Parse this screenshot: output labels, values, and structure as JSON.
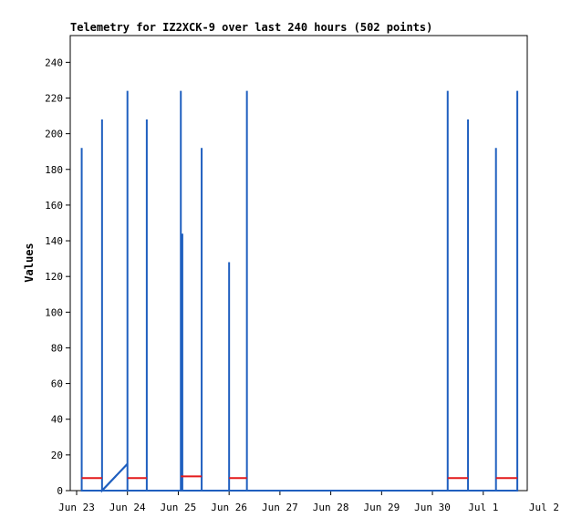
{
  "chart_data": {
    "type": "line",
    "title": "Telemetry for IZ2XCK-9 over last 240 hours (502 points)",
    "xlabel": "",
    "ylabel": "Values",
    "ylim": [
      0,
      255
    ],
    "yticks": [
      0,
      20,
      40,
      60,
      80,
      100,
      120,
      140,
      160,
      180,
      200,
      220,
      240
    ],
    "xlim": [
      0,
      9
    ],
    "xticks": [
      {
        "label": "Jun 23",
        "x": 0
      },
      {
        "label": "Jun 24",
        "x": 1
      },
      {
        "label": "Jun 25",
        "x": 2
      },
      {
        "label": "Jun 26",
        "x": 3
      },
      {
        "label": "Jun 27",
        "x": 4
      },
      {
        "label": "Jun 28",
        "x": 5
      },
      {
        "label": "Jun 29",
        "x": 6
      },
      {
        "label": "Jun 30",
        "x": 7
      },
      {
        "label": "Jul 1",
        "x": 8
      },
      {
        "label": "Jul 2",
        "x": 9
      }
    ],
    "grid": false,
    "colors": {
      "series1": "#1f5fbf",
      "series2": "#e41a1c",
      "frame": "#000000"
    },
    "series": [
      {
        "color": "#1f5fbf",
        "points": [
          [
            0.1,
            0
          ],
          [
            0.1,
            192
          ],
          [
            0.1,
            0
          ],
          [
            0.5,
            0
          ],
          [
            0.5,
            208
          ],
          [
            0.5,
            0
          ],
          [
            1.0,
            15
          ],
          [
            1.0,
            224
          ],
          [
            1.0,
            0
          ],
          [
            1.38,
            0
          ],
          [
            1.38,
            208
          ],
          [
            1.38,
            0
          ],
          [
            2.05,
            0
          ],
          [
            2.05,
            224
          ],
          [
            2.05,
            0
          ],
          [
            2.08,
            0
          ],
          [
            2.08,
            144
          ],
          [
            2.08,
            0
          ],
          [
            2.46,
            0
          ],
          [
            2.46,
            192
          ],
          [
            2.46,
            0
          ],
          [
            3.0,
            0
          ],
          [
            3.0,
            128
          ],
          [
            3.0,
            0
          ],
          [
            3.35,
            0
          ],
          [
            3.35,
            224
          ],
          [
            3.35,
            0
          ],
          [
            7.3,
            0
          ],
          [
            7.3,
            224
          ],
          [
            7.3,
            0
          ],
          [
            7.7,
            0
          ],
          [
            7.7,
            208
          ],
          [
            7.7,
            0
          ],
          [
            8.25,
            0
          ],
          [
            8.25,
            192
          ],
          [
            8.25,
            0
          ],
          [
            8.67,
            0
          ],
          [
            8.67,
            224
          ],
          [
            8.67,
            0
          ]
        ],
        "segments": [
          [
            [
              0.1,
              0
            ],
            [
              7.3,
              0
            ]
          ],
          [
            [
              7.3,
              0
            ],
            [
              8.67,
              0
            ]
          ],
          [
            [
              0.5,
              0
            ],
            [
              1.0,
              15
            ]
          ]
        ]
      },
      {
        "color": "#e41a1c",
        "segments": [
          [
            [
              0.1,
              7
            ],
            [
              0.5,
              7
            ]
          ],
          [
            [
              1.0,
              7
            ],
            [
              1.38,
              7
            ]
          ],
          [
            [
              2.05,
              8
            ],
            [
              2.46,
              8
            ]
          ],
          [
            [
              3.0,
              7
            ],
            [
              3.35,
              7
            ]
          ],
          [
            [
              7.3,
              7
            ],
            [
              7.7,
              7
            ]
          ],
          [
            [
              8.25,
              7
            ],
            [
              8.67,
              7
            ]
          ]
        ]
      }
    ]
  }
}
